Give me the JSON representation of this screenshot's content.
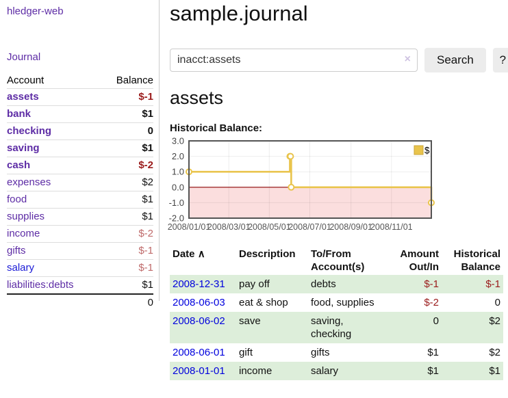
{
  "colors": {
    "accent_purple": "#5d2ca5",
    "link_blue": "#0000dd",
    "negative_dark_red": "#9a1b1b",
    "negative_light_red": "#bf6a6a",
    "row_stripe_green": "#ddeeda",
    "chart_line_gold": "#e9c44c",
    "chart_negative_fill": "#f7b6b6",
    "chart_zero_line": "#8b0000"
  },
  "sidebar": {
    "app_title": "hledger-web",
    "journal_link": "Journal",
    "accounts_table": {
      "account_header": "Account",
      "balance_header": "Balance",
      "rows": [
        {
          "name": "assets",
          "indent": 1,
          "style": "purple bold",
          "balance": "$-1",
          "balance_style": "neg bold"
        },
        {
          "name": "bank",
          "indent": 2,
          "style": "purple bold",
          "balance": "$1",
          "balance_style": "plain bold"
        },
        {
          "name": "checking",
          "indent": 3,
          "style": "purple bold",
          "balance": "0",
          "balance_style": "plain bold"
        },
        {
          "name": "saving",
          "indent": 3,
          "style": "purple bold",
          "balance": "$1",
          "balance_style": "plain bold"
        },
        {
          "name": "cash",
          "indent": 2,
          "style": "purple bold",
          "balance": "$-2",
          "balance_style": "neg bold"
        },
        {
          "name": "expenses",
          "indent": 1,
          "style": "purple",
          "balance": "$2",
          "balance_style": "plain"
        },
        {
          "name": "food",
          "indent": 2,
          "style": "purple",
          "balance": "$1",
          "balance_style": "plain"
        },
        {
          "name": "supplies",
          "indent": 2,
          "style": "purple",
          "balance": "$1",
          "balance_style": "plain"
        },
        {
          "name": "income",
          "indent": 1,
          "style": "purple",
          "balance": "$-2",
          "balance_style": "neglight"
        },
        {
          "name": "gifts",
          "indent": 2,
          "style": "purple",
          "balance": "$-1",
          "balance_style": "neglight"
        },
        {
          "name": "salary",
          "indent": 2,
          "style": "blue",
          "balance": "$-1",
          "balance_style": "neglight"
        },
        {
          "name": "liabilities:debts",
          "indent": 1,
          "style": "purple",
          "balance": "$1",
          "balance_style": "plain"
        }
      ],
      "total": "0"
    }
  },
  "main": {
    "title": "sample.journal",
    "search": {
      "value": "inacct:assets",
      "clear_icon": "×",
      "search_button": "Search",
      "help_button": "?"
    },
    "account_heading": "assets",
    "chart_title": "Historical Balance:"
  },
  "chart_data": {
    "type": "line",
    "title": "Historical Balance",
    "step": true,
    "x_start": "2008-01-01",
    "x_end": "2008-12-31",
    "series": [
      {
        "name": "$",
        "color": "#e9c44c",
        "points": [
          [
            "2008-01-01",
            1.0
          ],
          [
            "2008-06-01",
            2.0
          ],
          [
            "2008-06-02",
            2.0
          ],
          [
            "2008-06-03",
            0.0
          ],
          [
            "2008-12-31",
            -1.0
          ]
        ]
      }
    ],
    "ylim": [
      -2.0,
      3.0
    ],
    "ytick_labels": [
      "3.0",
      "2.0",
      "1.0",
      "0.0",
      "-1.0",
      "-2.0"
    ],
    "ytick_values": [
      3,
      2,
      1,
      0,
      -1,
      -2
    ],
    "xtick_labels": [
      "2008/01/01",
      "2008/03/01",
      "2008/05/01",
      "2008/07/01",
      "2008/09/01",
      "2008/11/01"
    ],
    "xtick_dates": [
      "2008-01-01",
      "2008-03-01",
      "2008-05-01",
      "2008-07-01",
      "2008-09-01",
      "2008-11-01"
    ],
    "grid": true,
    "legend": {
      "label": "$",
      "position": "top-right"
    },
    "negative_region": true,
    "negative_region_color": "#f7b6b6",
    "zero_line_color": "#8b0000"
  },
  "transactions": {
    "headers": {
      "date": "Date",
      "sort_icon": "∧",
      "description": "Description",
      "accounts": "To/From Account(s)",
      "amount": "Amount Out/In",
      "balance": "Historical Balance"
    },
    "rows": [
      {
        "date": "2008-12-31",
        "description": "pay off",
        "accounts": "debts",
        "amount": "$-1",
        "amount_style": "neg",
        "balance": "$-1",
        "balance_style": "neg"
      },
      {
        "date": "2008-06-03",
        "description": "eat & shop",
        "accounts": "food, supplies",
        "amount": "$-2",
        "amount_style": "neg",
        "balance": "0",
        "balance_style": "plain"
      },
      {
        "date": "2008-06-02",
        "description": "save",
        "accounts": "saving, checking",
        "amount": "0",
        "amount_style": "plain",
        "balance": "$2",
        "balance_style": "plain"
      },
      {
        "date": "2008-06-01",
        "description": "gift",
        "accounts": "gifts",
        "amount": "$1",
        "amount_style": "plain",
        "balance": "$2",
        "balance_style": "plain"
      },
      {
        "date": "2008-01-01",
        "description": "income",
        "accounts": "salary",
        "amount": "$1",
        "amount_style": "plain",
        "balance": "$1",
        "balance_style": "plain"
      }
    ]
  }
}
